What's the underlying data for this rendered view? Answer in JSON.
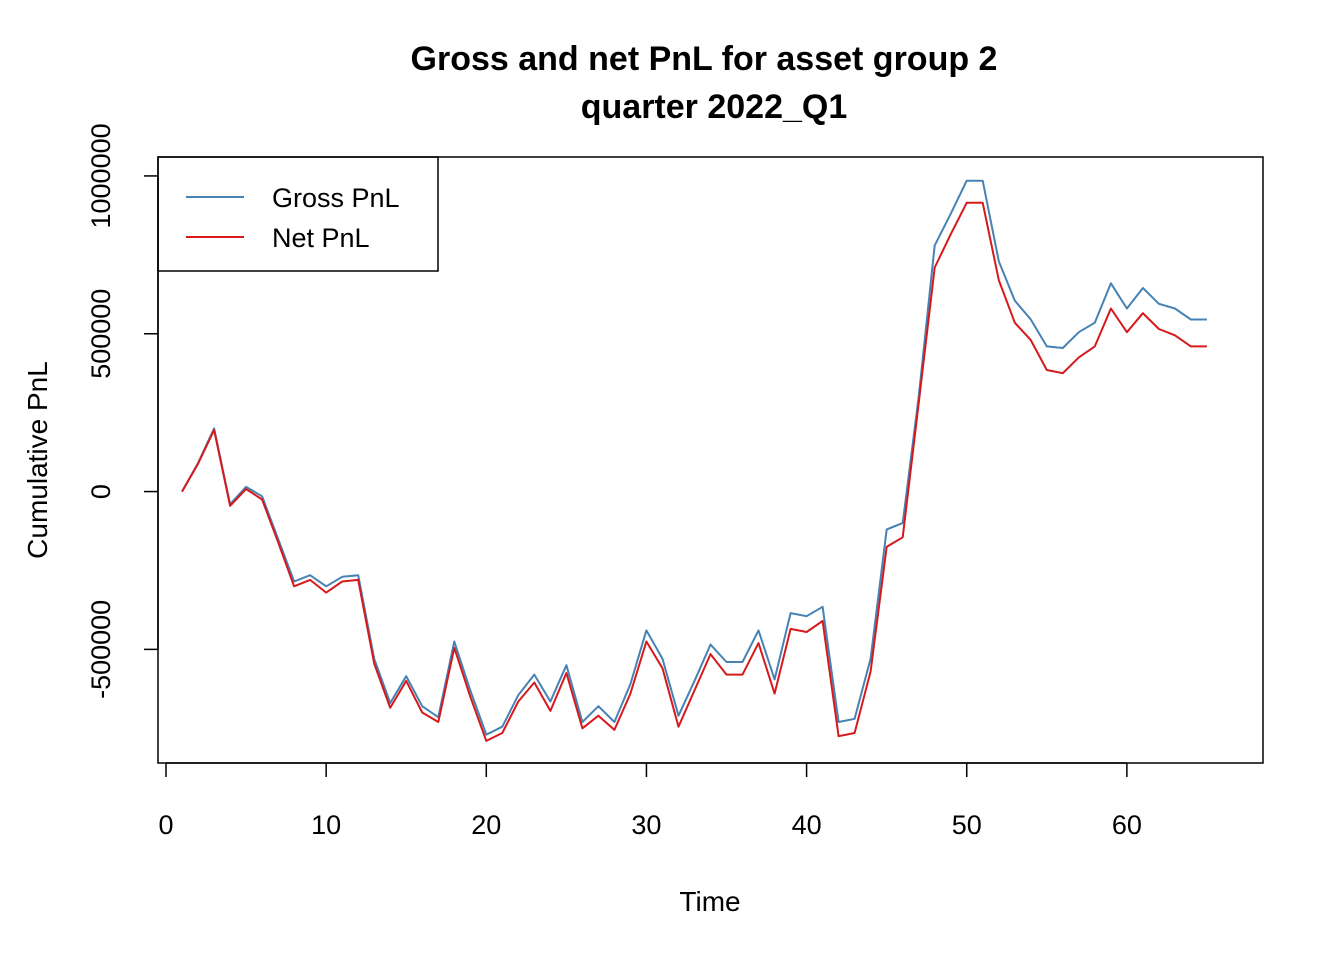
{
  "chart_data": {
    "type": "line",
    "title": "Gross and net PnL for asset group 2",
    "subtitle": "quarter 2022_Q1",
    "xlabel": "Time",
    "ylabel": "Cumulative PnL",
    "xlim": [
      -0.5,
      68.5
    ],
    "ylim": [
      -860000,
      1060000
    ],
    "xticks": [
      0,
      10,
      20,
      30,
      40,
      50,
      60
    ],
    "xtick_labels": [
      "0",
      "10",
      "20",
      "30",
      "40",
      "50",
      "60"
    ],
    "yticks": [
      -500000,
      0,
      500000,
      1000000
    ],
    "ytick_labels": [
      "-500000",
      "0",
      "500000",
      "1000000"
    ],
    "grid": false,
    "legend_position": "top-left",
    "x": [
      1,
      2,
      3,
      4,
      5,
      6,
      7,
      8,
      9,
      10,
      11,
      12,
      13,
      14,
      15,
      16,
      17,
      18,
      19,
      20,
      21,
      22,
      23,
      24,
      25,
      26,
      27,
      28,
      29,
      30,
      31,
      32,
      33,
      34,
      35,
      36,
      37,
      38,
      39,
      40,
      41,
      42,
      43,
      44,
      45,
      46,
      47,
      48,
      49,
      50,
      51,
      52,
      53,
      54,
      55,
      56,
      57,
      58,
      59,
      60,
      61,
      62,
      63,
      64,
      65
    ],
    "series": [
      {
        "name": "Gross PnL",
        "color": "#4682B4",
        "values": [
          0,
          90000,
          200000,
          -40000,
          15000,
          -15000,
          -150000,
          -285000,
          -265000,
          -300000,
          -270000,
          -265000,
          -530000,
          -670000,
          -585000,
          -680000,
          -715000,
          -475000,
          -630000,
          -770000,
          -745000,
          -645000,
          -580000,
          -665000,
          -550000,
          -730000,
          -680000,
          -730000,
          -610000,
          -440000,
          -530000,
          -710000,
          -600000,
          -485000,
          -540000,
          -540000,
          -440000,
          -595000,
          -385000,
          -395000,
          -365000,
          -730000,
          -720000,
          -530000,
          -120000,
          -100000,
          300000,
          780000,
          880000,
          985000,
          985000,
          730000,
          605000,
          545000,
          460000,
          455000,
          505000,
          535000,
          660000,
          580000,
          645000,
          595000,
          580000,
          545000,
          545000
        ]
      },
      {
        "name": "Net PnL",
        "color": "#D7191C",
        "values": [
          0,
          88000,
          195000,
          -45000,
          8000,
          -25000,
          -160000,
          -300000,
          -280000,
          -320000,
          -285000,
          -280000,
          -545000,
          -685000,
          -600000,
          -700000,
          -730000,
          -495000,
          -650000,
          -790000,
          -765000,
          -665000,
          -605000,
          -695000,
          -575000,
          -750000,
          -710000,
          -755000,
          -640000,
          -475000,
          -560000,
          -745000,
          -630000,
          -515000,
          -580000,
          -580000,
          -480000,
          -640000,
          -435000,
          -445000,
          -410000,
          -775000,
          -765000,
          -570000,
          -175000,
          -145000,
          280000,
          710000,
          815000,
          915000,
          915000,
          670000,
          535000,
          480000,
          385000,
          375000,
          425000,
          460000,
          580000,
          505000,
          565000,
          515000,
          495000,
          460000,
          460000
        ]
      }
    ]
  }
}
